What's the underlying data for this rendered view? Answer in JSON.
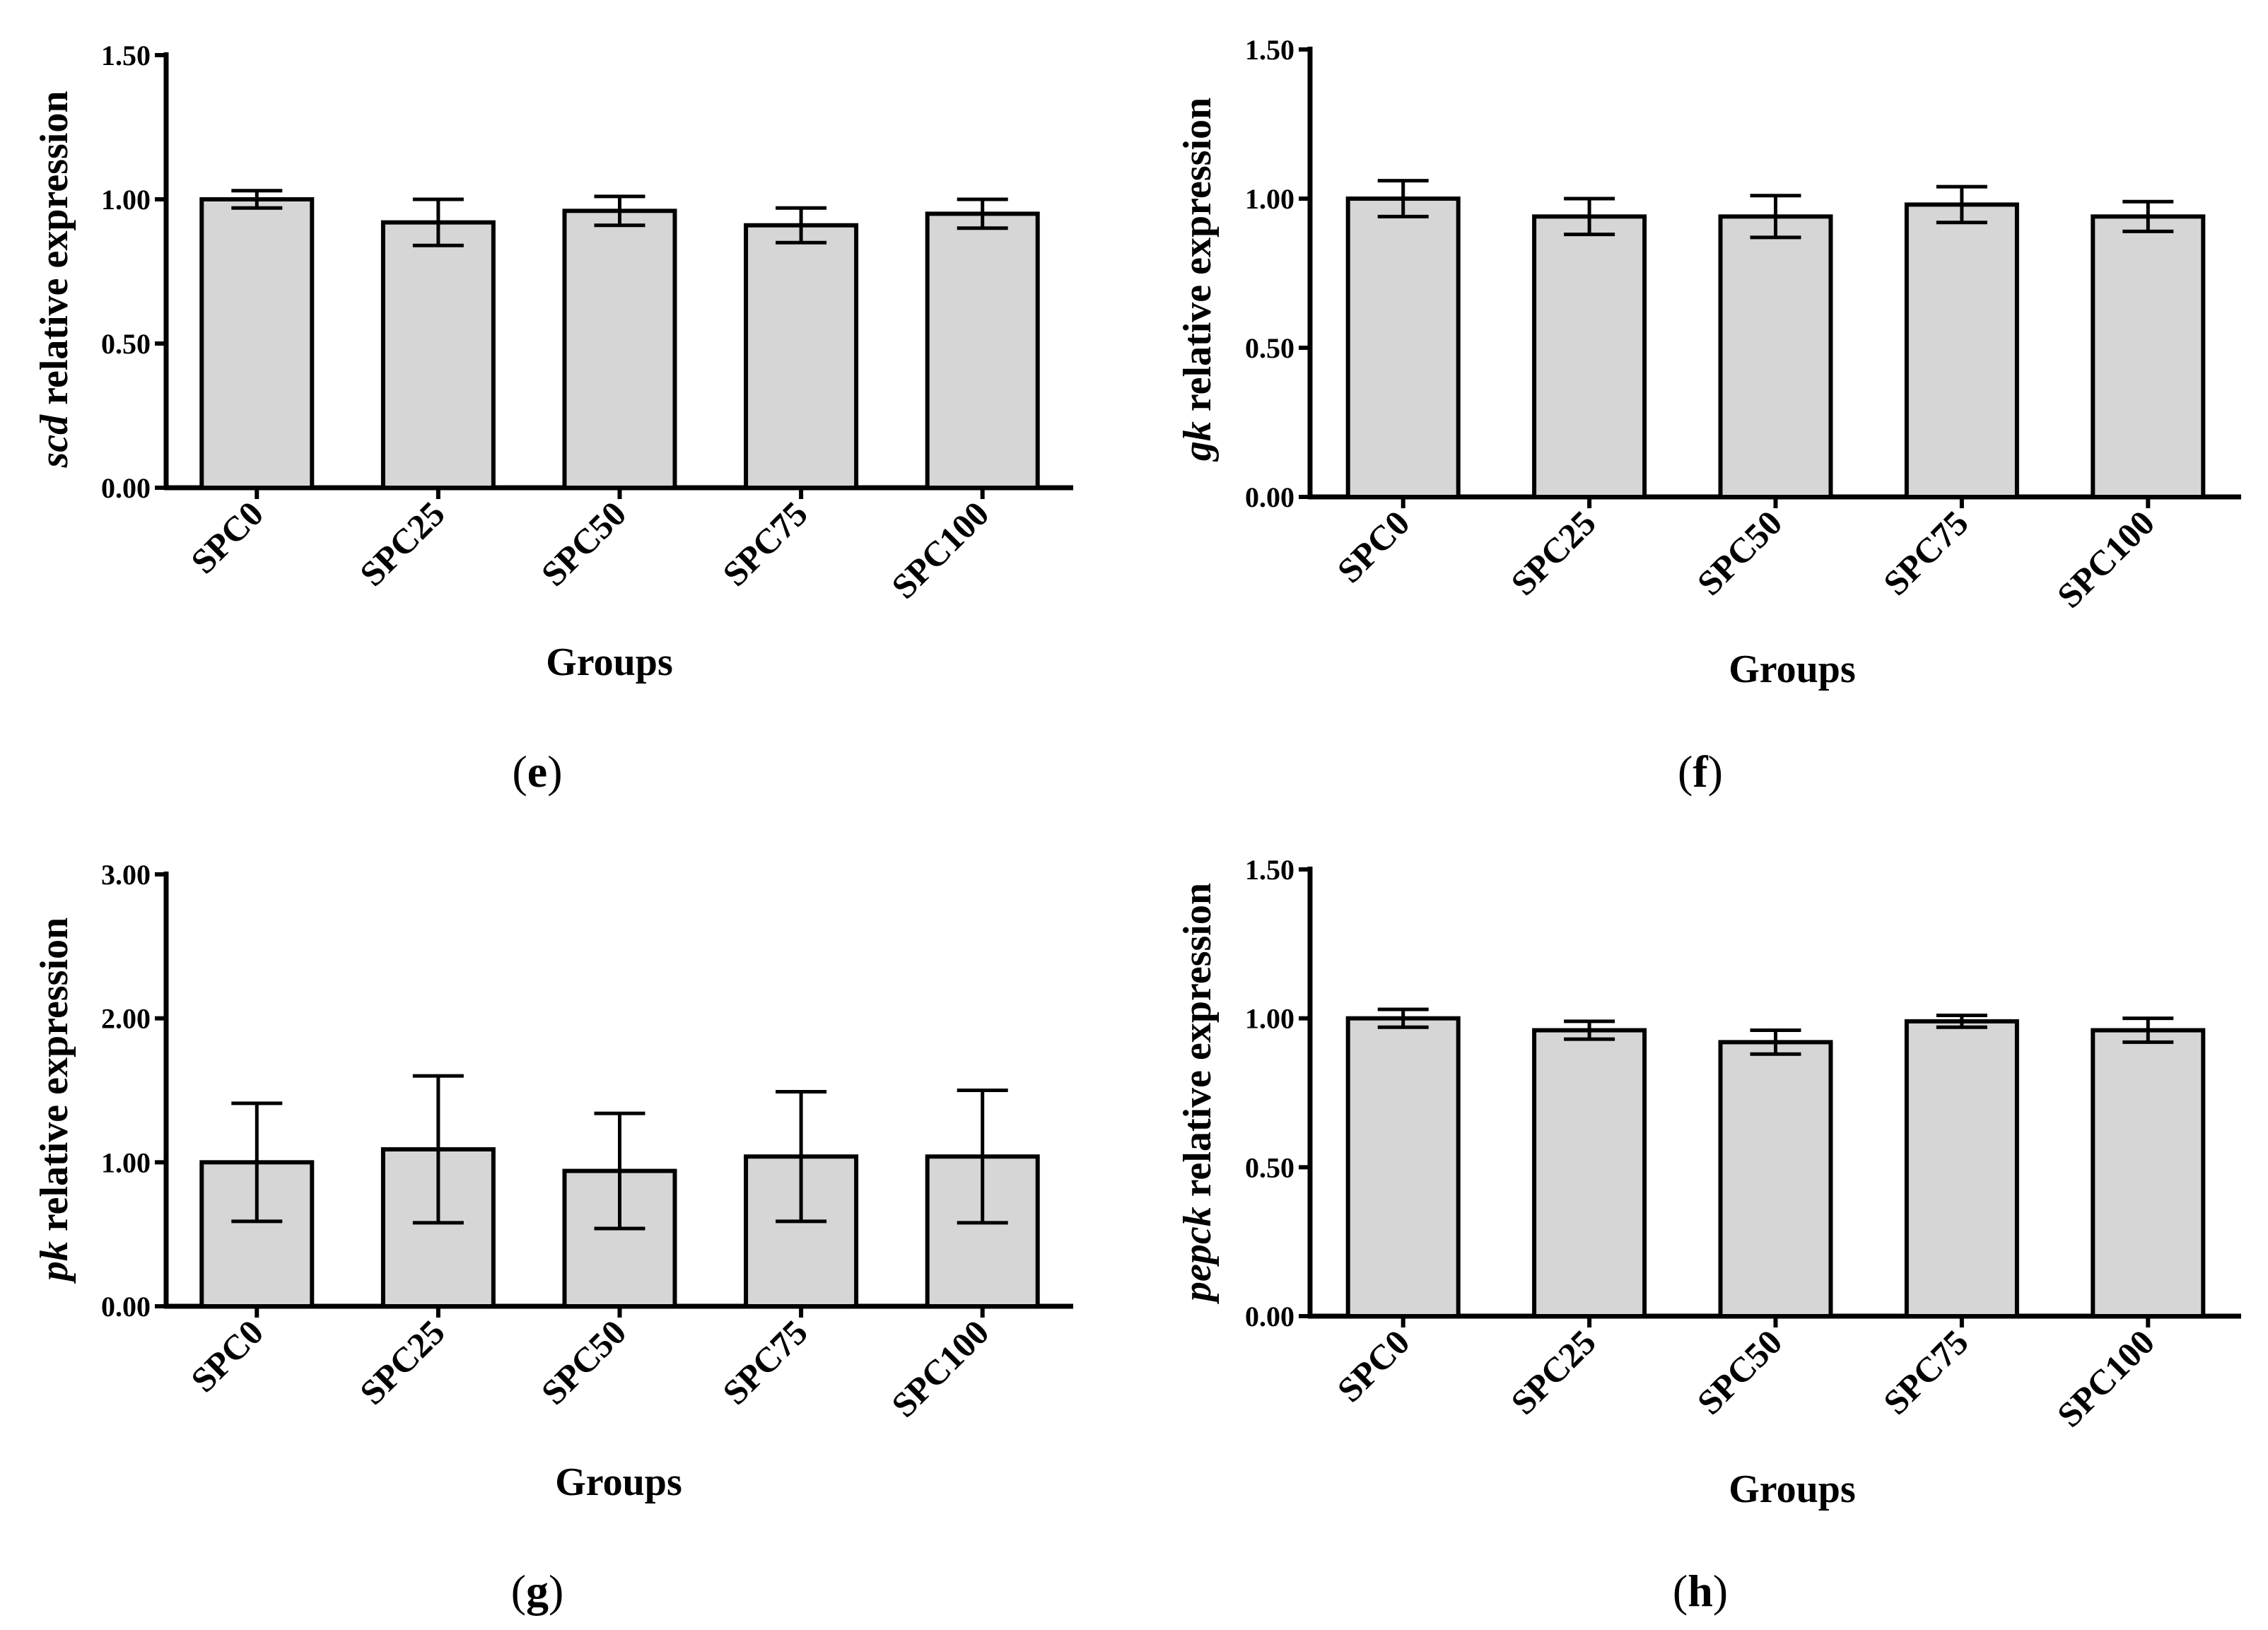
{
  "chart_data": [
    {
      "panel": "e",
      "type": "bar",
      "gene": "scd",
      "ylabel_suffix": " relative expression",
      "xlabel": "Groups",
      "categories": [
        "SPC0",
        "SPC25",
        "SPC50",
        "SPC75",
        "SPC100"
      ],
      "values": [
        1.0,
        0.92,
        0.96,
        0.91,
        0.95
      ],
      "errors": [
        0.03,
        0.08,
        0.05,
        0.06,
        0.05
      ],
      "ylim": [
        0,
        1.5
      ],
      "yticks": [
        0,
        0.5,
        1.0,
        1.5
      ],
      "ytick_labels": [
        "0.00",
        "0.50",
        "1.00",
        "1.50"
      ]
    },
    {
      "panel": "f",
      "type": "bar",
      "gene": "gk",
      "ylabel_suffix": " relative expression",
      "xlabel": "Groups",
      "categories": [
        "SPC0",
        "SPC25",
        "SPC50",
        "SPC75",
        "SPC100"
      ],
      "values": [
        1.0,
        0.94,
        0.94,
        0.98,
        0.94
      ],
      "errors": [
        0.06,
        0.06,
        0.07,
        0.06,
        0.05
      ],
      "ylim": [
        0,
        1.5
      ],
      "yticks": [
        0,
        0.5,
        1.0,
        1.5
      ],
      "ytick_labels": [
        "0.00",
        "0.50",
        "1.00",
        "1.50"
      ]
    },
    {
      "panel": "g",
      "type": "bar",
      "gene": "pk",
      "ylabel_suffix": " relative expression",
      "xlabel": "Groups",
      "categories": [
        "SPC0",
        "SPC25",
        "SPC50",
        "SPC75",
        "SPC100"
      ],
      "values": [
        1.0,
        1.09,
        0.94,
        1.04,
        1.04
      ],
      "errors": [
        0.41,
        0.51,
        0.4,
        0.45,
        0.46
      ],
      "ylim": [
        0,
        3.0
      ],
      "yticks": [
        0,
        1.0,
        2.0,
        3.0
      ],
      "ytick_labels": [
        "0.00",
        "1.00",
        "2.00",
        "3.00"
      ]
    },
    {
      "panel": "h",
      "type": "bar",
      "gene": "pepck",
      "ylabel_suffix": " relative expression",
      "xlabel": "Groups",
      "categories": [
        "SPC0",
        "SPC25",
        "SPC50",
        "SPC75",
        "SPC100"
      ],
      "values": [
        1.0,
        0.96,
        0.92,
        0.99,
        0.96
      ],
      "errors": [
        0.03,
        0.03,
        0.04,
        0.02,
        0.04
      ],
      "ylim": [
        0,
        1.5
      ],
      "yticks": [
        0,
        0.5,
        1.0,
        1.5
      ],
      "ytick_labels": [
        "0.00",
        "0.50",
        "1.00",
        "1.50"
      ]
    }
  ]
}
